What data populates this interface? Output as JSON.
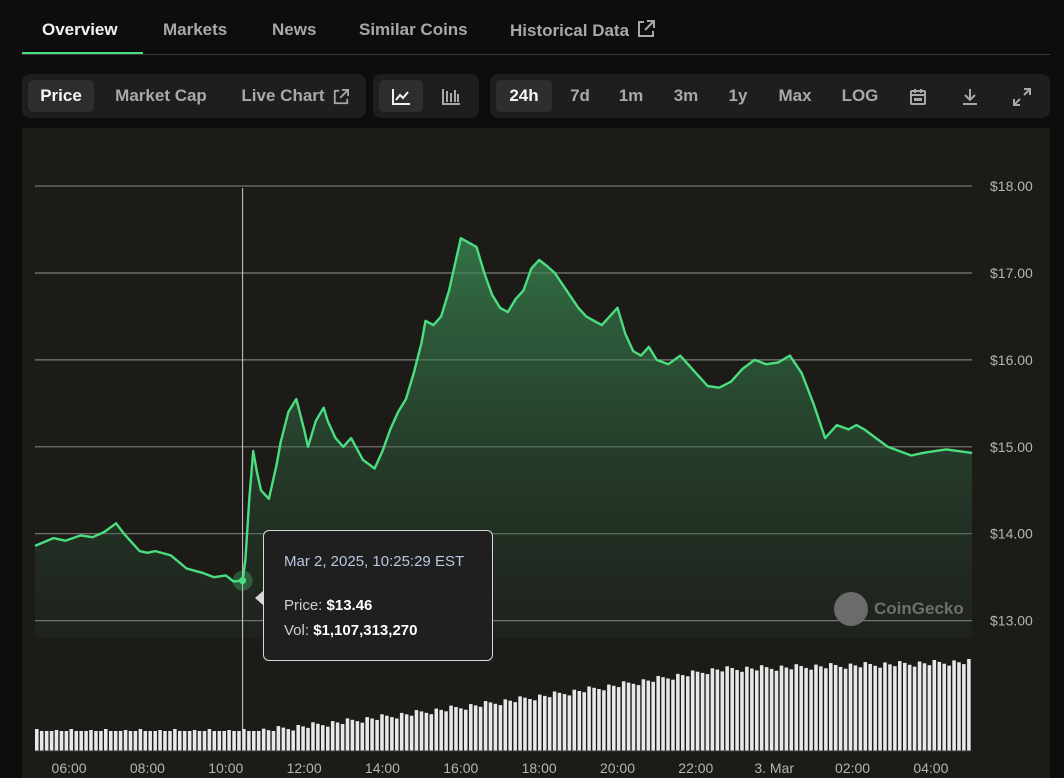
{
  "tabs": [
    {
      "label": "Overview",
      "active": true
    },
    {
      "label": "Markets"
    },
    {
      "label": "News"
    },
    {
      "label": "Similar Coins"
    },
    {
      "label": "Historical Data",
      "icon": "external-link-icon"
    }
  ],
  "toolbar": {
    "view": [
      {
        "label": "Price",
        "active": true
      },
      {
        "label": "Market Cap"
      },
      {
        "label": "Live Chart",
        "icon": "external-link-icon"
      }
    ],
    "chart_type_icons": [
      "line-chart-icon",
      "candlestick-chart-icon"
    ],
    "ranges": [
      {
        "label": "24h",
        "active": true
      },
      {
        "label": "7d"
      },
      {
        "label": "1m"
      },
      {
        "label": "3m"
      },
      {
        "label": "1y"
      },
      {
        "label": "Max"
      },
      {
        "label": "LOG"
      }
    ],
    "action_icons": [
      "calendar-icon",
      "download-icon",
      "fullscreen-icon"
    ]
  },
  "tooltip": {
    "date": "Mar 2, 2025, 10:25:29 EST",
    "price_label": "Price:",
    "price_value": "$13.46",
    "vol_label": "Vol:",
    "vol_value": "$1,107,313,270"
  },
  "watermark": "CoinGecko",
  "colors": {
    "line": "#4ade80",
    "accent": "#4ade80",
    "volume": "#e8e8e8",
    "panel_bg": "#1c1b18"
  },
  "chart_data": {
    "type": "area",
    "title": "",
    "xlabel": "",
    "ylabel": "",
    "y_tick_labels": [
      "$18.00",
      "$17.00",
      "$16.00",
      "$15.00",
      "$14.00",
      "$13.00"
    ],
    "y_ticks": [
      18,
      17,
      16,
      15,
      14,
      13
    ],
    "ylim": [
      12.8,
      18.07
    ],
    "x_tick_labels": [
      "06:00",
      "08:00",
      "10:00",
      "12:00",
      "14:00",
      "16:00",
      "18:00",
      "20:00",
      "22:00",
      "3. Mar",
      "02:00",
      "04:00"
    ],
    "x_ticks": [
      6,
      8,
      10,
      12,
      14,
      16,
      18,
      20,
      22,
      24,
      26,
      28
    ],
    "xlim": [
      5.13,
      29.05
    ],
    "grid": true,
    "crosshair_x": 10.43,
    "series": [
      {
        "x": [
          5.13,
          5.6,
          5.9,
          6.3,
          6.6,
          6.9,
          7.2,
          7.4,
          7.6,
          7.8,
          8.0,
          8.2,
          8.6,
          9.0,
          9.4,
          9.7,
          10.0,
          10.2,
          10.43,
          10.5,
          10.6,
          10.7,
          10.8,
          10.9,
          11.1,
          11.3,
          11.4,
          11.6,
          11.8,
          12.0,
          12.1,
          12.3,
          12.5,
          12.6,
          12.8,
          13.0,
          13.2,
          13.5,
          13.8,
          14.0,
          14.2,
          14.4,
          14.6,
          14.8,
          15.0,
          15.1,
          15.3,
          15.5,
          15.7,
          15.9,
          16.0,
          16.2,
          16.4,
          16.6,
          16.8,
          17.0,
          17.2,
          17.4,
          17.6,
          17.8,
          18.0,
          18.2,
          18.4,
          18.7,
          19.0,
          19.2,
          19.4,
          19.6,
          19.8,
          20.0,
          20.2,
          20.4,
          20.6,
          20.8,
          21.0,
          21.3,
          21.6,
          22.0,
          22.3,
          22.6,
          22.9,
          23.2,
          23.5,
          23.8,
          24.1,
          24.4,
          24.7,
          25.0,
          25.3,
          25.6,
          25.9,
          26.1,
          26.3,
          26.6,
          26.9,
          27.2,
          27.5,
          27.8,
          28.1,
          28.4,
          28.7,
          29.05
        ],
        "y": [
          13.86,
          13.95,
          13.92,
          13.98,
          13.96,
          14.02,
          14.12,
          14.0,
          13.9,
          13.8,
          13.78,
          13.8,
          13.75,
          13.6,
          13.55,
          13.5,
          13.52,
          13.45,
          13.46,
          13.7,
          14.4,
          14.95,
          14.7,
          14.5,
          14.4,
          14.8,
          15.05,
          15.4,
          15.55,
          15.2,
          15.0,
          15.3,
          15.45,
          15.3,
          15.1,
          15.0,
          15.1,
          14.85,
          14.75,
          14.95,
          15.2,
          15.4,
          15.55,
          15.85,
          16.2,
          16.45,
          16.4,
          16.5,
          16.8,
          17.2,
          17.4,
          17.35,
          17.3,
          17.0,
          16.75,
          16.6,
          16.55,
          16.7,
          16.8,
          17.05,
          17.15,
          17.08,
          17.0,
          16.8,
          16.6,
          16.5,
          16.45,
          16.4,
          16.5,
          16.6,
          16.3,
          16.1,
          16.05,
          16.15,
          16.0,
          15.95,
          16.05,
          15.85,
          15.7,
          15.68,
          15.75,
          15.9,
          16.0,
          15.95,
          15.97,
          16.05,
          15.85,
          15.5,
          15.1,
          15.25,
          15.2,
          15.25,
          15.2,
          15.1,
          15.0,
          14.95,
          14.9,
          14.93,
          14.95,
          14.97,
          14.95,
          14.93
        ]
      }
    ]
  }
}
